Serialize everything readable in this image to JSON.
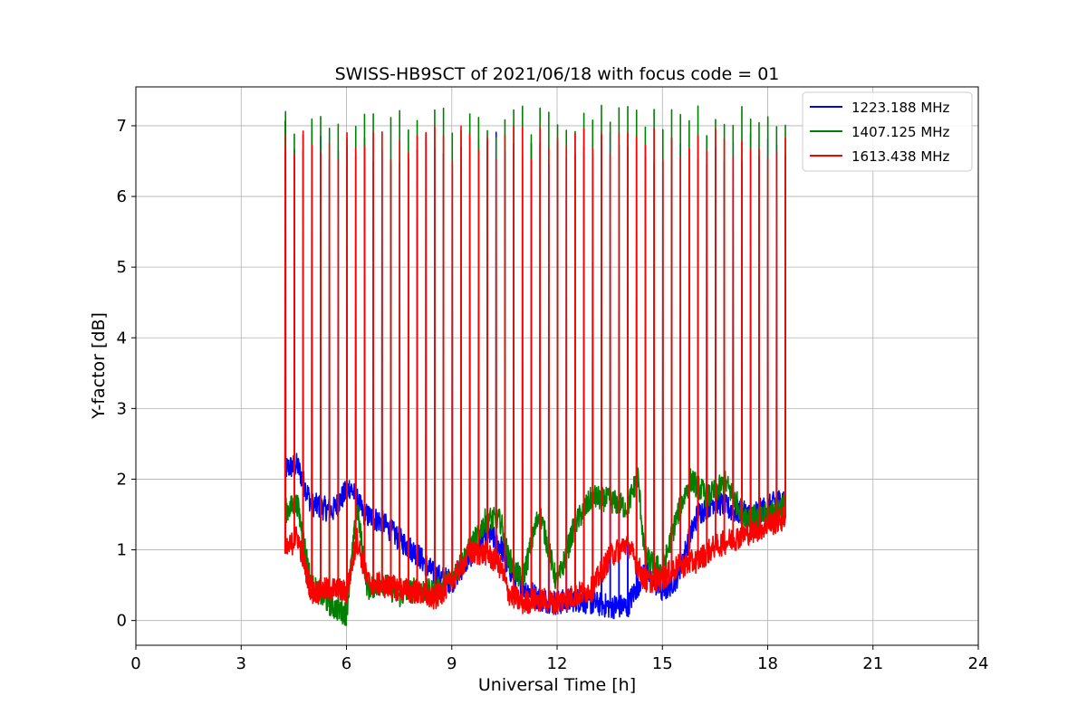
{
  "chart_data": {
    "type": "line",
    "title": "SWISS-HB9SCT of 2021/06/18 with focus code = 01",
    "xlabel": "Universal Time [h]",
    "ylabel": "Y-factor [dB]",
    "xlim": [
      0,
      24
    ],
    "ylim": [
      -0.35,
      7.55
    ],
    "xticks": [
      0,
      3,
      6,
      9,
      12,
      15,
      18,
      21,
      24
    ],
    "yticks": [
      0,
      1,
      2,
      3,
      4,
      5,
      6,
      7
    ],
    "grid": true,
    "legend_position": "top-right",
    "spike_interval_h": 0.25,
    "series": [
      {
        "name": "1223.188 MHz",
        "color": "#0000ff",
        "baseline": [
          [
            4.25,
            2.15
          ],
          [
            4.6,
            2.2
          ],
          [
            5.0,
            1.65
          ],
          [
            5.6,
            1.55
          ],
          [
            6.1,
            1.9
          ],
          [
            6.5,
            1.5
          ],
          [
            7.0,
            1.4
          ],
          [
            7.5,
            1.15
          ],
          [
            8.0,
            0.95
          ],
          [
            8.5,
            0.65
          ],
          [
            9.0,
            0.55
          ],
          [
            9.5,
            0.9
          ],
          [
            10.0,
            1.25
          ],
          [
            10.4,
            1.05
          ],
          [
            10.6,
            0.75
          ],
          [
            11.0,
            0.5
          ],
          [
            11.5,
            0.3
          ],
          [
            12.0,
            0.25
          ],
          [
            12.5,
            0.3
          ],
          [
            13.0,
            0.25
          ],
          [
            13.5,
            0.2
          ],
          [
            14.0,
            0.2
          ],
          [
            14.5,
            0.7
          ],
          [
            15.0,
            0.4
          ],
          [
            15.4,
            0.6
          ],
          [
            16.0,
            1.5
          ],
          [
            16.5,
            1.7
          ],
          [
            17.0,
            1.55
          ],
          [
            17.5,
            1.5
          ],
          [
            18.0,
            1.6
          ],
          [
            18.5,
            1.75
          ]
        ],
        "spike_peak": 6.7
      },
      {
        "name": "1407.125 MHz",
        "color": "#008000",
        "baseline": [
          [
            4.25,
            1.55
          ],
          [
            4.6,
            1.65
          ],
          [
            5.0,
            0.5
          ],
          [
            5.6,
            0.2
          ],
          [
            6.0,
            0.1
          ],
          [
            6.3,
            1.6
          ],
          [
            6.6,
            0.45
          ],
          [
            7.0,
            0.55
          ],
          [
            7.5,
            0.35
          ],
          [
            8.0,
            0.45
          ],
          [
            8.5,
            0.4
          ],
          [
            9.0,
            0.6
          ],
          [
            9.5,
            1.0
          ],
          [
            10.0,
            1.45
          ],
          [
            10.4,
            1.4
          ],
          [
            10.6,
            0.9
          ],
          [
            11.0,
            0.55
          ],
          [
            11.5,
            1.55
          ],
          [
            12.0,
            0.5
          ],
          [
            12.5,
            1.35
          ],
          [
            13.0,
            1.75
          ],
          [
            13.5,
            1.7
          ],
          [
            14.0,
            1.6
          ],
          [
            14.3,
            2.05
          ],
          [
            14.5,
            0.9
          ],
          [
            15.0,
            0.7
          ],
          [
            15.4,
            1.45
          ],
          [
            15.8,
            2.0
          ],
          [
            16.3,
            1.75
          ],
          [
            16.8,
            1.95
          ],
          [
            17.3,
            1.5
          ],
          [
            17.8,
            1.45
          ],
          [
            18.5,
            1.65
          ]
        ],
        "spike_peak": 7.05
      },
      {
        "name": "1613.438 MHz",
        "color": "#ff0000",
        "baseline": [
          [
            4.25,
            0.95
          ],
          [
            4.6,
            1.2
          ],
          [
            5.0,
            0.4
          ],
          [
            5.6,
            0.45
          ],
          [
            6.0,
            0.4
          ],
          [
            6.3,
            1.15
          ],
          [
            6.6,
            0.55
          ],
          [
            7.0,
            0.5
          ],
          [
            7.5,
            0.45
          ],
          [
            8.0,
            0.4
          ],
          [
            8.5,
            0.3
          ],
          [
            9.0,
            0.55
          ],
          [
            9.5,
            0.95
          ],
          [
            10.0,
            0.95
          ],
          [
            10.4,
            0.75
          ],
          [
            10.6,
            0.4
          ],
          [
            11.0,
            0.25
          ],
          [
            11.5,
            0.3
          ],
          [
            12.0,
            0.25
          ],
          [
            12.5,
            0.35
          ],
          [
            13.0,
            0.45
          ],
          [
            13.5,
            0.9
          ],
          [
            14.0,
            1.1
          ],
          [
            14.5,
            0.55
          ],
          [
            15.0,
            0.6
          ],
          [
            15.4,
            0.75
          ],
          [
            16.0,
            0.85
          ],
          [
            16.5,
            1.05
          ],
          [
            17.0,
            1.15
          ],
          [
            17.5,
            1.25
          ],
          [
            18.0,
            1.35
          ],
          [
            18.5,
            1.45
          ]
        ],
        "spike_peak": 6.75
      }
    ]
  }
}
